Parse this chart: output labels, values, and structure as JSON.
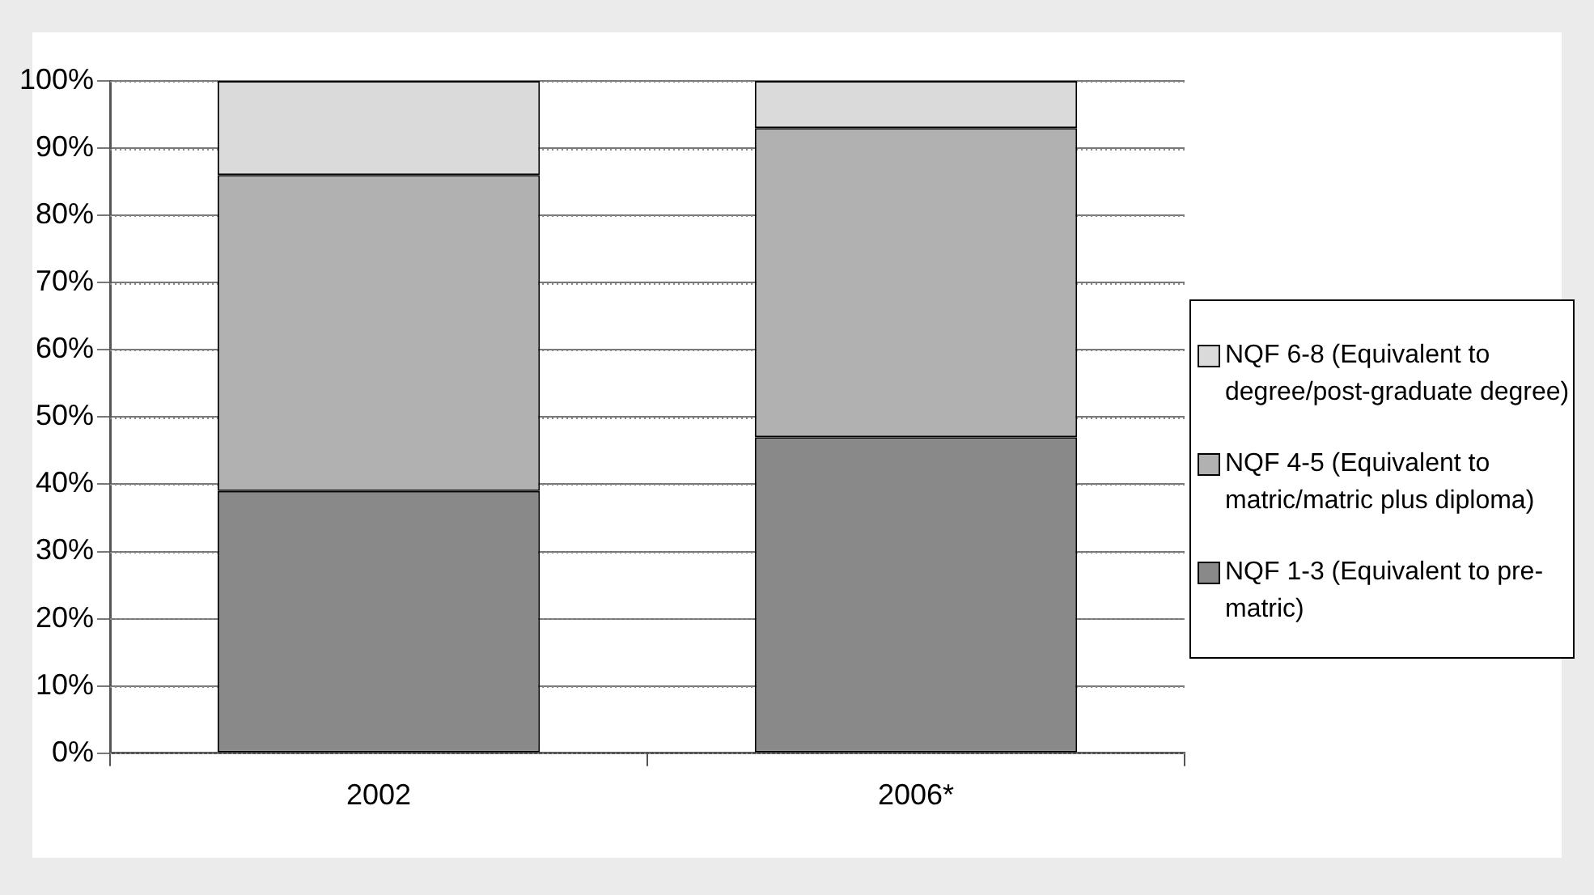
{
  "chart_data": {
    "type": "bar",
    "stacked": true,
    "categories": [
      "2002",
      "2006*"
    ],
    "series": [
      {
        "name": "NQF 1-3 (Equivalent to pre-matric)",
        "color": "#898989",
        "values": [
          39,
          47
        ]
      },
      {
        "name": "NQF 4-5 (Equivalent to matric/matric plus diploma)",
        "color": "#b1b1b1",
        "values": [
          47,
          46
        ]
      },
      {
        "name": "NQF 6-8 (Equivalent to degree/post-graduate degree)",
        "color": "#dadadb",
        "values": [
          14,
          7
        ]
      }
    ],
    "ylim": [
      0,
      100
    ],
    "yticks": [
      {
        "value": 0,
        "label": "0%"
      },
      {
        "value": 10,
        "label": "10%"
      },
      {
        "value": 20,
        "label": "20%"
      },
      {
        "value": 30,
        "label": "30%"
      },
      {
        "value": 40,
        "label": "40%"
      },
      {
        "value": 50,
        "label": "50%"
      },
      {
        "value": 60,
        "label": "60%"
      },
      {
        "value": 70,
        "label": "70%"
      },
      {
        "value": 80,
        "label": "80%"
      },
      {
        "value": 90,
        "label": "90%"
      },
      {
        "value": 100,
        "label": "100%"
      }
    ],
    "grid": "y",
    "legend": "right"
  }
}
